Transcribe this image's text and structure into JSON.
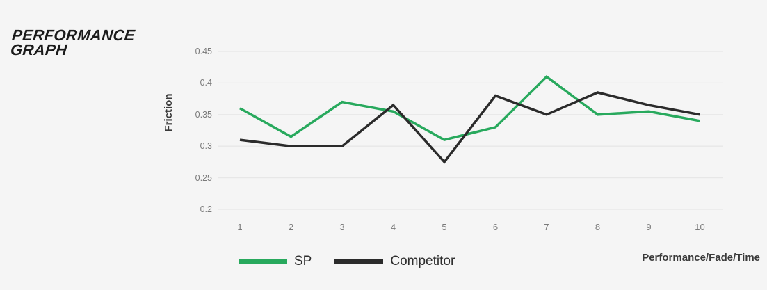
{
  "header": {
    "title_line1": "PERFORMANCE",
    "title_line2": "GRAPH"
  },
  "colors": {
    "background": "#f5f5f5",
    "grid": "#e7e7e7",
    "tick_text": "#7a7a7a",
    "label_text": "#3a3a3a",
    "title_text": "#1b1b1b"
  },
  "chart_data": {
    "type": "line",
    "title": "PERFORMANCE GRAPH",
    "ylabel": "Friction",
    "xlabel": "Performance/Fade/Time",
    "categories": [
      "1",
      "2",
      "3",
      "4",
      "5",
      "6",
      "7",
      "8",
      "9",
      "10"
    ],
    "y_ticks": [
      0.45,
      0.4,
      0.35,
      0.3,
      0.25,
      0.2
    ],
    "ylim": [
      0.2,
      0.45
    ],
    "grid": "horizontal-only",
    "legend_position": "bottom",
    "series": [
      {
        "name": "SP",
        "color": "#28a95d",
        "values": [
          0.36,
          0.315,
          0.37,
          0.355,
          0.31,
          0.33,
          0.41,
          0.35,
          0.355,
          0.34
        ]
      },
      {
        "name": "Competitor",
        "color": "#2b2b2b",
        "values": [
          0.31,
          0.3,
          0.3,
          0.365,
          0.275,
          0.38,
          0.35,
          0.385,
          0.365,
          0.35
        ]
      }
    ]
  }
}
